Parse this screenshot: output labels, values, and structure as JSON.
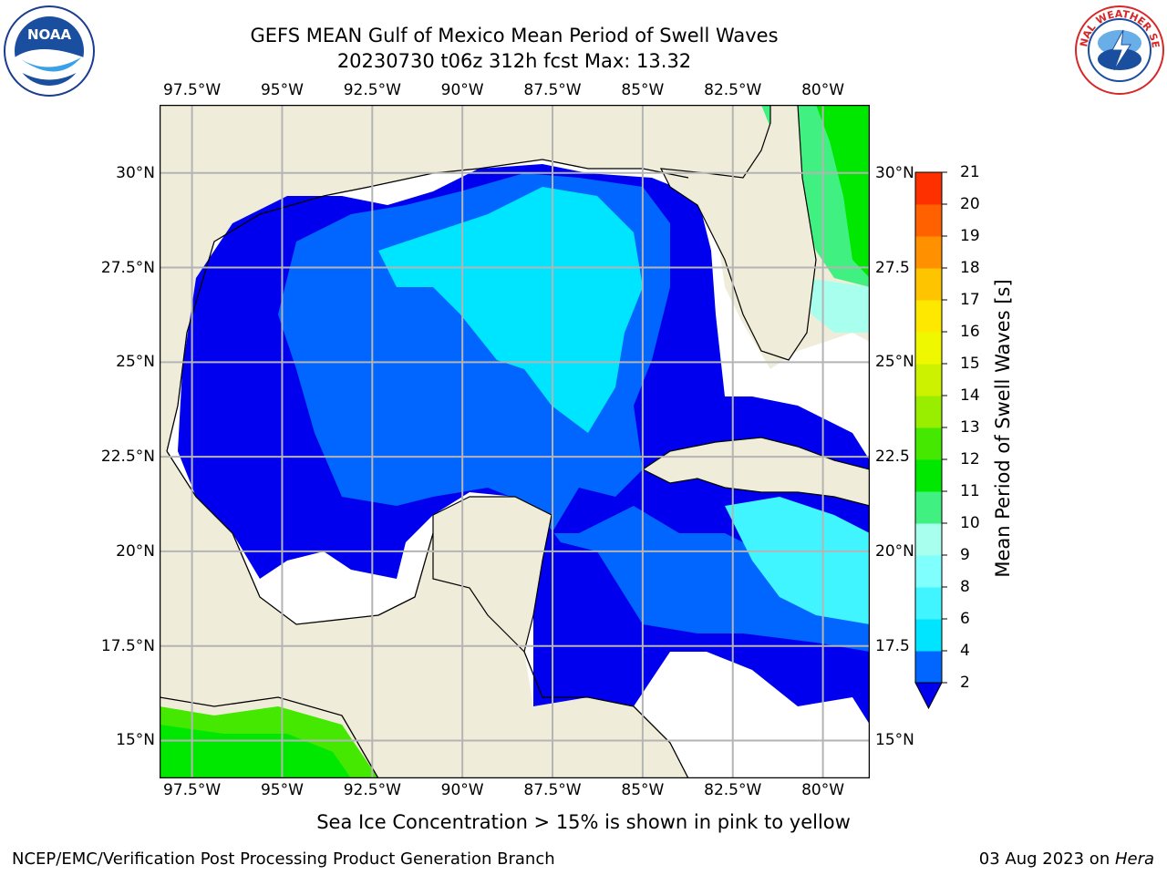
{
  "title": {
    "line1": "GEFS MEAN Gulf of Mexico Mean Period of Swell Waves",
    "line2": "20230730 t06z 312h fcst   Max: 13.32"
  },
  "logos": {
    "left": {
      "name": "noaa-logo",
      "text": "NOAA",
      "ring_text": "NATIONAL OCEANIC AND ATMOSPHERIC ADMINISTRATION · U.S. DEPARTMENT OF COMMERCE"
    },
    "right": {
      "name": "nws-logo",
      "ring_text": "NATIONAL WEATHER SERVICE"
    }
  },
  "map": {
    "lon_range": [
      -98.4,
      -78.7
    ],
    "lat_range": [
      14.0,
      31.8
    ],
    "lon_ticks": [
      -97.5,
      -95,
      -92.5,
      -90,
      -87.5,
      -85,
      -82.5,
      -80
    ],
    "lat_ticks": [
      15,
      17.5,
      20,
      22.5,
      25,
      27.5,
      30
    ],
    "lon_labels": [
      "97.5°W",
      "95°W",
      "92.5°W",
      "90°W",
      "87.5°W",
      "85°W",
      "82.5°W",
      "80°W"
    ],
    "lat_labels_left": [
      "15°N",
      "17.5°N",
      "20°N",
      "22.5°N",
      "25°N",
      "27.5°N",
      "30°N"
    ],
    "lat_labels_right": [
      "15°N",
      "17.5",
      "20°N",
      "22.5",
      "25°N",
      "27.5",
      "30°N"
    ],
    "colors": {
      "land": "#efedd9",
      "nodata": "#ffffff",
      "grid": "#b4b4b4"
    }
  },
  "colorbar": {
    "title": "Mean Period of Swell Waves [s]",
    "levels": [
      2,
      4,
      6,
      8,
      9,
      10,
      11,
      12,
      13,
      14,
      15,
      16,
      17,
      18,
      19,
      20,
      21
    ],
    "labels": [
      "2",
      "4",
      "6",
      "8",
      "9",
      "10",
      "11",
      "12",
      "13",
      "14",
      "15",
      "16",
      "17",
      "18",
      "19",
      "20",
      "21"
    ],
    "colors": [
      "#0066ff",
      "#00e5ff",
      "#40f5ff",
      "#80ffff",
      "#a8ffee",
      "#40f080",
      "#00e800",
      "#44e800",
      "#99ee00",
      "#ccf200",
      "#f0f800",
      "#ffe800",
      "#ffc400",
      "#ff9000",
      "#ff6000",
      "#ff3000",
      "#ff0000"
    ],
    "under_color": "#0000ee"
  },
  "footer": {
    "note": "Sea Ice Concentration > 15% is shown in pink to yellow",
    "left": "NCEP/EMC/Verification Post Processing Product Generation Branch",
    "date": "03 Aug 2023 on ",
    "machine": "Hera"
  }
}
